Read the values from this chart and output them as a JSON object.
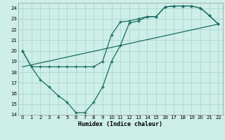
{
  "xlabel": "Humidex (Indice chaleur)",
  "xlim": [
    -0.5,
    22.5
  ],
  "ylim": [
    14,
    24.5
  ],
  "xticks": [
    0,
    1,
    2,
    3,
    4,
    5,
    6,
    7,
    8,
    9,
    10,
    11,
    12,
    13,
    14,
    15,
    16,
    17,
    18,
    19,
    20,
    21,
    22
  ],
  "yticks": [
    14,
    15,
    16,
    17,
    18,
    19,
    20,
    21,
    22,
    23,
    24
  ],
  "bg_color": "#ceeee8",
  "grid_color": "#a8d8ce",
  "line_color": "#1a6e62",
  "line1_x": [
    0,
    1,
    2,
    3,
    4,
    5,
    6,
    7,
    8,
    9,
    10,
    11,
    12,
    13,
    14,
    15,
    16,
    17,
    18,
    19,
    20,
    21,
    22
  ],
  "line1_y": [
    20,
    18.5,
    18.5,
    18.5,
    18.5,
    18.5,
    18.5,
    18.5,
    18.5,
    19.0,
    21.5,
    22.7,
    22.8,
    23.0,
    23.2,
    23.2,
    24.1,
    24.2,
    24.2,
    24.2,
    24.0,
    23.3,
    22.5
  ],
  "line2_x": [
    0,
    1,
    2,
    3,
    4,
    5,
    6,
    7,
    8,
    9,
    10,
    11,
    12,
    13,
    14,
    15,
    16,
    17,
    18,
    19,
    20,
    21,
    22
  ],
  "line2_y": [
    20,
    18.5,
    17.3,
    16.6,
    15.8,
    15.2,
    14.2,
    14.2,
    15.2,
    16.6,
    19.0,
    20.5,
    22.6,
    22.8,
    23.2,
    23.2,
    24.1,
    24.2,
    24.2,
    24.2,
    24.0,
    23.3,
    22.5
  ],
  "line3_x": [
    0,
    22
  ],
  "line3_y": [
    18.5,
    22.5
  ]
}
